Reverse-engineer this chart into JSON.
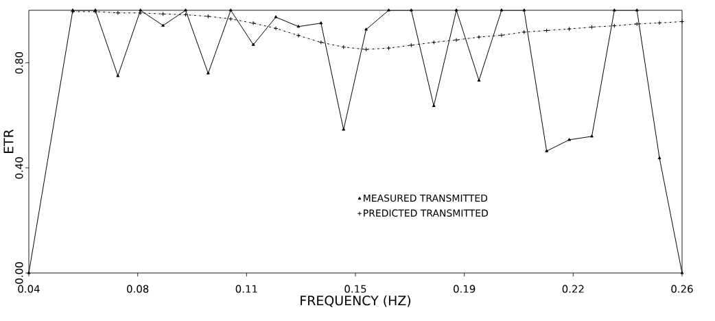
{
  "chart_data": {
    "type": "line",
    "xlabel": "FREQUENCY  (HZ)",
    "ylabel": "ETR",
    "x": [
      0.04,
      0.0548,
      0.0624,
      0.07,
      0.0776,
      0.0852,
      0.0928,
      0.1004,
      0.108,
      0.1156,
      0.1232,
      0.1308,
      0.1384,
      0.146,
      0.1536,
      0.1612,
      0.1688,
      0.1764,
      0.184,
      0.1916,
      0.1992,
      0.2068,
      0.2144,
      0.222,
      0.2296,
      0.2372,
      0.2448,
      0.2524,
      0.26
    ],
    "series": [
      {
        "name": "MEASURED TRANSMITTED",
        "color": "#000000",
        "marker": "triangle",
        "line_style": "solid",
        "values": [
          0.0,
          1.0,
          1.0,
          0.75,
          1.0,
          0.942,
          1.0,
          0.76,
          1.0,
          0.869,
          0.974,
          0.938,
          0.951,
          0.546,
          0.927,
          1.0,
          1.0,
          0.636,
          1.0,
          0.733,
          1.0,
          1.0,
          0.464,
          0.507,
          0.52,
          1.0,
          1.0,
          0.437,
          0.0
        ]
      },
      {
        "name": "PREDICTED TRANSMITTED",
        "color": "#000000",
        "marker": "cross",
        "line_style": "dashed",
        "values": [
          null,
          0.995,
          0.995,
          0.99,
          0.99,
          0.986,
          0.983,
          0.977,
          0.967,
          0.951,
          0.931,
          0.904,
          0.878,
          0.86,
          0.851,
          0.856,
          0.867,
          0.878,
          0.887,
          0.898,
          0.905,
          0.917,
          0.923,
          0.929,
          0.936,
          0.941,
          0.948,
          0.952,
          0.957
        ]
      }
    ],
    "xlim": [
      0.04,
      0.26
    ],
    "xticks": [
      {
        "value": 0.04,
        "label": "0.04"
      },
      {
        "value": 0.07667,
        "label": "0.08"
      },
      {
        "value": 0.11333,
        "label": "0.11"
      },
      {
        "value": 0.15,
        "label": "0.15"
      },
      {
        "value": 0.18667,
        "label": "0.19"
      },
      {
        "value": 0.22333,
        "label": "0.22"
      },
      {
        "value": 0.26,
        "label": "0.26"
      }
    ],
    "ylim": [
      0,
      1.0
    ],
    "yticks": [
      {
        "value": 0,
        "label": "0.00"
      },
      {
        "value": 0.4,
        "label": "0.40"
      },
      {
        "value": 0.8,
        "label": "0.80"
      }
    ],
    "grid": false,
    "legend": "bottom"
  }
}
